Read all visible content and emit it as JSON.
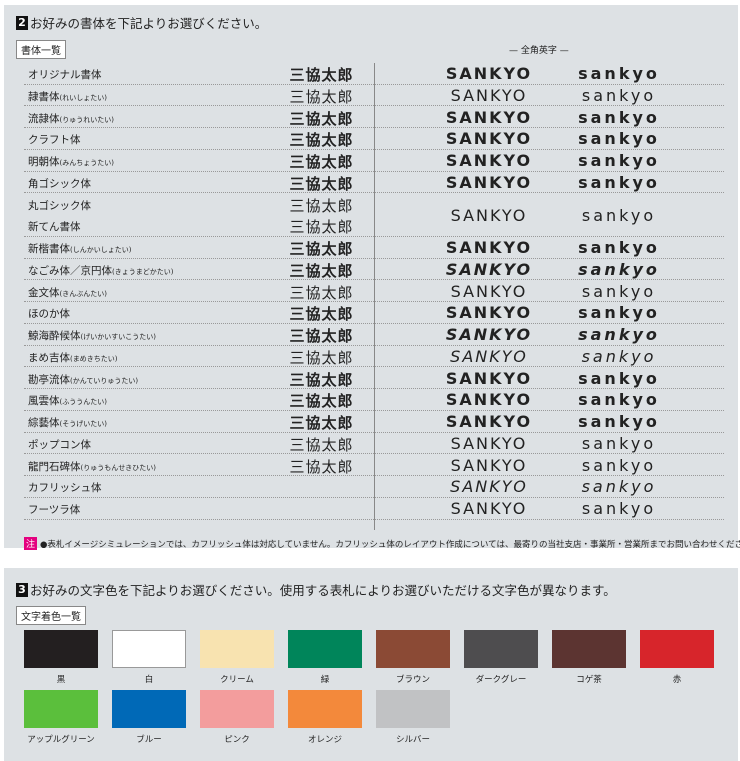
{
  "section2": {
    "number": "2",
    "title": "お好みの書体を下記よりお選びください。",
    "tag": "書体一覧",
    "alpha_header": "— 全角英字 —",
    "sample_kanji": "三協太郎",
    "sample_upper": "SANKYO",
    "sample_lower": "sankyo",
    "fonts": [
      {
        "name": "オリジナル書体",
        "reading": ""
      },
      {
        "name": "隷書体",
        "reading": "(れいしょたい)"
      },
      {
        "name": "流隷体",
        "reading": "(りゅうれいたい)"
      },
      {
        "name": "クラフト体",
        "reading": ""
      },
      {
        "name": "明朝体",
        "reading": "(みんちょうたい)"
      },
      {
        "name": "角ゴシック体",
        "reading": ""
      },
      {
        "name": "丸ゴシック体",
        "reading": ""
      },
      {
        "name": "新てん書体",
        "reading": ""
      },
      {
        "name": "新楷書体",
        "reading": "(しんかいしょたい)"
      },
      {
        "name": "なごみ体／京円体",
        "reading": "(きょうまどかたい)"
      },
      {
        "name": "金文体",
        "reading": "(きんぶんたい)"
      },
      {
        "name": "ほのか体",
        "reading": ""
      },
      {
        "name": "鯨海酔候体",
        "reading": "(げいかいすいこうたい)"
      },
      {
        "name": "まめ吉体",
        "reading": "(まめきちたい)"
      },
      {
        "name": "勘亭流体",
        "reading": "(かんていりゅうたい)"
      },
      {
        "name": "風雲体",
        "reading": "(ふううんたい)"
      },
      {
        "name": "綜藝体",
        "reading": "(そうげいたい)"
      },
      {
        "name": "ポップコン体",
        "reading": ""
      },
      {
        "name": "龍門石碑体",
        "reading": "(りゅうもんせきひたい)"
      },
      {
        "name": "カフリッシュ体",
        "reading": ""
      },
      {
        "name": "フーツラ体",
        "reading": ""
      }
    ],
    "note_label": "注",
    "note": "●表札イメージシミュレーションでは、カフリッシュ体は対応していません。カフリッシュ体のレイアウト作成については、最寄りの当社支店・事業所・営業所までお問い合わせください。"
  },
  "section3": {
    "number": "3",
    "title": "お好みの文字色を下記よりお選びください。使用する表札によりお選びいただける文字色が異なります。",
    "tag": "文字着色一覧",
    "colors": [
      {
        "label": "黒",
        "hex": "#231f20"
      },
      {
        "label": "白",
        "hex": "#ffffff"
      },
      {
        "label": "クリーム",
        "hex": "#f8e3b0"
      },
      {
        "label": "緑",
        "hex": "#00855a"
      },
      {
        "label": "ブラウン",
        "hex": "#8b4a35"
      },
      {
        "label": "ダークグレー",
        "hex": "#4e4d4f"
      },
      {
        "label": "コゲ茶",
        "hex": "#5c3431"
      },
      {
        "label": "赤",
        "hex": "#d7252b"
      },
      {
        "label": "アップルグリーン",
        "hex": "#5bbf3c"
      },
      {
        "label": "ブルー",
        "hex": "#0069b7"
      },
      {
        "label": "ピンク",
        "hex": "#f39d9d"
      },
      {
        "label": "オレンジ",
        "hex": "#f3893b"
      },
      {
        "label": "シルバー",
        "hex": "#c1c2c4"
      }
    ]
  }
}
